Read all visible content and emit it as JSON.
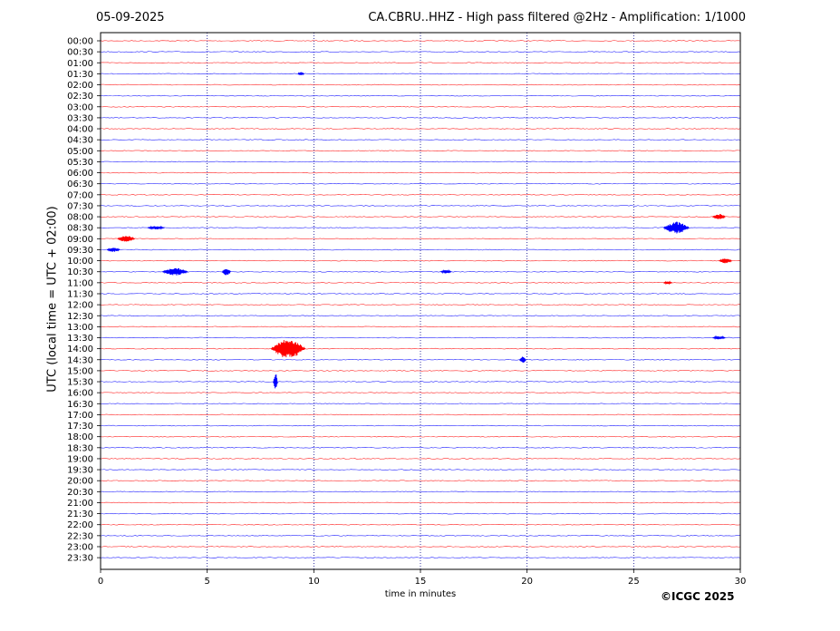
{
  "header": {
    "date": "05-09-2025",
    "title": "CA.CBRU..HHZ - High pass filtered @2Hz - Amplification: 1/1000"
  },
  "footer": {
    "copyright": "©ICGC 2025"
  },
  "colors": {
    "trace_even": "#ff0000",
    "trace_odd": "#0000ff",
    "axis": "#000000",
    "grid": "#00008b"
  },
  "chart_data": {
    "type": "line",
    "title": "CA.CBRU..HHZ - High pass filtered @2Hz - Amplification: 1/1000",
    "xlabel": "time in minutes",
    "ylabel": "UTC (local time = UTC + 02:00)",
    "xlim": [
      0,
      30
    ],
    "x_ticks": [
      0,
      5,
      10,
      15,
      20,
      25,
      30
    ],
    "grid_x": [
      5,
      10,
      15,
      20,
      25
    ],
    "rows": [
      "00:00",
      "00:30",
      "01:00",
      "01:30",
      "02:00",
      "02:30",
      "03:00",
      "03:30",
      "04:00",
      "04:30",
      "05:00",
      "05:30",
      "06:00",
      "06:30",
      "07:00",
      "07:30",
      "08:00",
      "08:30",
      "09:00",
      "09:30",
      "10:00",
      "10:30",
      "11:00",
      "11:30",
      "12:00",
      "12:30",
      "13:00",
      "13:30",
      "14:00",
      "14:30",
      "15:00",
      "15:30",
      "16:00",
      "16:30",
      "17:00",
      "17:30",
      "18:00",
      "18:30",
      "19:00",
      "19:30",
      "20:00",
      "20:30",
      "21:00",
      "21:30",
      "22:00",
      "22:30",
      "23:00",
      "23:30"
    ],
    "trace_colors": [
      "#ff0000",
      "#0000ff"
    ],
    "events": [
      {
        "row": "01:30",
        "minute": 9.4,
        "amp": 0.15,
        "dur": 0.3
      },
      {
        "row": "08:00",
        "minute": 29.0,
        "amp": 0.25,
        "dur": 0.6
      },
      {
        "row": "08:30",
        "minute": 27.0,
        "amp": 0.55,
        "dur": 1.2
      },
      {
        "row": "08:30",
        "minute": 2.6,
        "amp": 0.15,
        "dur": 0.8
      },
      {
        "row": "09:00",
        "minute": 1.2,
        "amp": 0.3,
        "dur": 0.8
      },
      {
        "row": "09:30",
        "minute": 0.6,
        "amp": 0.2,
        "dur": 0.6
      },
      {
        "row": "10:00",
        "minute": 29.3,
        "amp": 0.25,
        "dur": 0.6
      },
      {
        "row": "10:30",
        "minute": 3.5,
        "amp": 0.35,
        "dur": 1.2
      },
      {
        "row": "10:30",
        "minute": 5.9,
        "amp": 0.35,
        "dur": 0.4
      },
      {
        "row": "10:30",
        "minute": 16.2,
        "amp": 0.15,
        "dur": 0.5
      },
      {
        "row": "11:00",
        "minute": 26.6,
        "amp": 0.12,
        "dur": 0.4
      },
      {
        "row": "13:30",
        "minute": 29.0,
        "amp": 0.15,
        "dur": 0.6
      },
      {
        "row": "14:00",
        "minute": 8.8,
        "amp": 0.9,
        "dur": 1.6
      },
      {
        "row": "14:30",
        "minute": 19.8,
        "amp": 0.3,
        "dur": 0.3
      },
      {
        "row": "15:30",
        "minute": 8.2,
        "amp": 0.8,
        "dur": 0.2
      }
    ]
  }
}
